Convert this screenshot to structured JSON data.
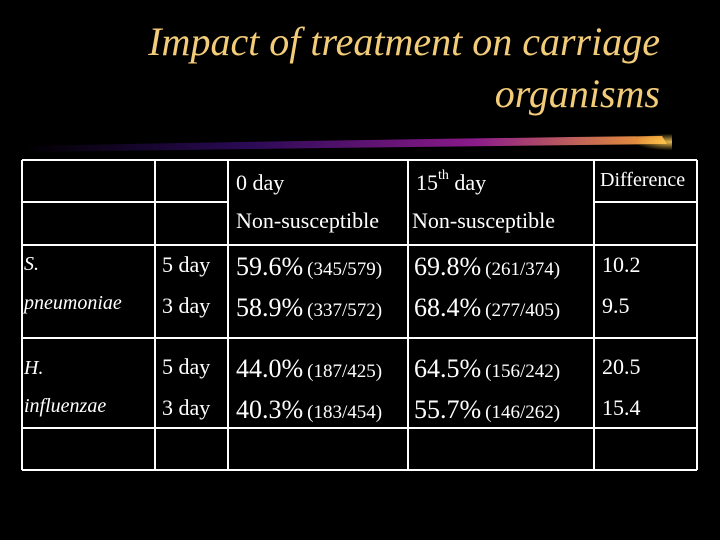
{
  "slide": {
    "title_line1": "Impact of treatment on carriage",
    "title_line2": "organisms",
    "title_color": "#f2cc78",
    "background": "#000000"
  },
  "table": {
    "headers": {
      "day0": "0 day",
      "day15_prefix": "15",
      "day15_sup": "th",
      "day15_suffix": " day",
      "difference": "Difference",
      "col1_sub": "Non-susceptible",
      "col2_sub": "Non-susceptible"
    },
    "groups": [
      {
        "organism_line1": "S.",
        "organism_line2": "pneumoniae",
        "rows": [
          {
            "duration": "5 day",
            "day0_pct": "59.6%",
            "day0_frac": "(345/579)",
            "day15_pct": "69.8%",
            "day15_frac": "(261/374)",
            "difference": "10.2"
          },
          {
            "duration": "3 day",
            "day0_pct": "58.9%",
            "day0_frac": "(337/572)",
            "day15_pct": "68.4%",
            "day15_frac": "(277/405)",
            "difference": "9.5"
          }
        ]
      },
      {
        "organism_line1": "H.",
        "organism_line2": "influenzae",
        "rows": [
          {
            "duration": "5 day",
            "day0_pct": "44.0%",
            "day0_frac": "(187/425)",
            "day15_pct": "64.5%",
            "day15_frac": "(156/242)",
            "difference": "20.5"
          },
          {
            "duration": "3 day",
            "day0_pct": "40.3%",
            "day0_frac": "(183/454)",
            "day15_pct": "55.7%",
            "day15_frac": "(146/262)",
            "difference": "15.4"
          }
        ]
      }
    ]
  }
}
